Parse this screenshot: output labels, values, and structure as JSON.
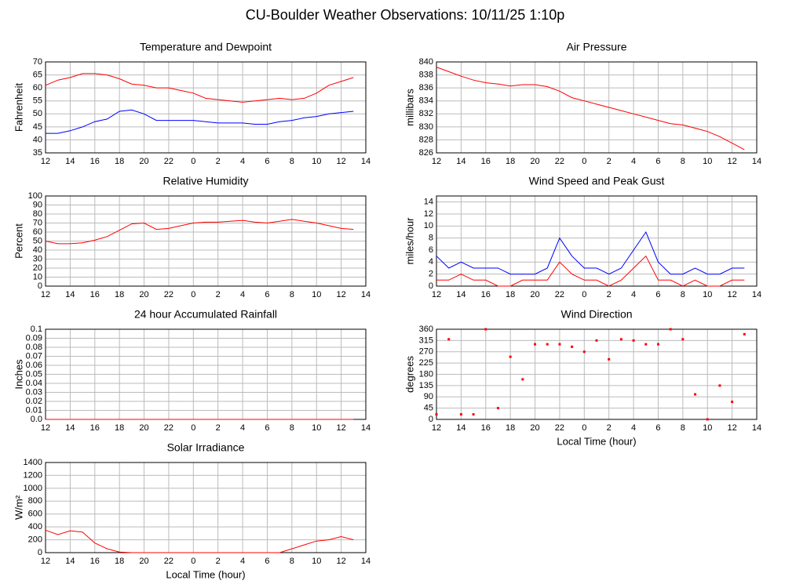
{
  "title": "CU-Boulder Weather Observations: 10/11/25 1:10p",
  "chart_data": [
    {
      "type": "line",
      "title": "Temperature and Dewpoint",
      "ylabel": "Fahrenheit",
      "x": [
        12,
        13,
        14,
        15,
        16,
        17,
        18,
        19,
        20,
        21,
        22,
        23,
        24,
        25,
        26,
        27,
        28,
        29,
        30,
        31,
        32,
        33,
        34,
        35,
        36,
        37
      ],
      "series": [
        {
          "color": "#ff0000",
          "values": [
            61,
            63,
            64,
            65.5,
            65.5,
            65,
            63.5,
            61.5,
            61,
            60,
            60,
            59,
            58,
            56,
            55.5,
            55,
            54.5,
            55,
            55.5,
            56,
            55.5,
            56,
            58,
            61,
            62.5,
            64
          ]
        },
        {
          "color": "#0000ff",
          "values": [
            42.5,
            42.5,
            43.5,
            45,
            47,
            48,
            51,
            51.5,
            50,
            47.5,
            47.5,
            47.5,
            47.5,
            47,
            46.5,
            46.5,
            46.5,
            46,
            46,
            47,
            47.5,
            48.5,
            49,
            50,
            50.5,
            51
          ]
        }
      ],
      "xlim": [
        12,
        38
      ],
      "ylim": [
        35,
        70
      ],
      "xticks": [
        12,
        14,
        16,
        18,
        20,
        22,
        {
          "value": 24,
          "label": "0"
        },
        {
          "value": 26,
          "label": "2"
        },
        {
          "value": 28,
          "label": "4"
        },
        {
          "value": 30,
          "label": "6"
        },
        {
          "value": 32,
          "label": "8"
        },
        {
          "value": 34,
          "label": "10"
        },
        {
          "value": 36,
          "label": "12"
        },
        {
          "value": 38,
          "label": "14"
        }
      ],
      "yticks": [
        35,
        40,
        45,
        50,
        55,
        60,
        65,
        70
      ],
      "grid": true
    },
    {
      "type": "line",
      "title": "Air Pressure",
      "ylabel": "millibars",
      "x": [
        12,
        13,
        14,
        15,
        16,
        17,
        18,
        19,
        20,
        21,
        22,
        23,
        24,
        25,
        26,
        27,
        28,
        29,
        30,
        31,
        32,
        33,
        34,
        35,
        36,
        37
      ],
      "series": [
        {
          "color": "#ff0000",
          "values": [
            839.2,
            838.5,
            837.8,
            837.2,
            836.8,
            836.6,
            836.3,
            836.5,
            836.5,
            836.2,
            835.5,
            834.5,
            834,
            833.5,
            833,
            832.5,
            832,
            831.5,
            831,
            830.5,
            830.3,
            829.8,
            829.3,
            828.5,
            827.5,
            826.5
          ]
        }
      ],
      "xlim": [
        12,
        38
      ],
      "ylim": [
        826,
        840
      ],
      "xticks": [
        12,
        14,
        16,
        18,
        20,
        22,
        {
          "value": 24,
          "label": "0"
        },
        {
          "value": 26,
          "label": "2"
        },
        {
          "value": 28,
          "label": "4"
        },
        {
          "value": 30,
          "label": "6"
        },
        {
          "value": 32,
          "label": "8"
        },
        {
          "value": 34,
          "label": "10"
        },
        {
          "value": 36,
          "label": "12"
        },
        {
          "value": 38,
          "label": "14"
        }
      ],
      "yticks": [
        826,
        828,
        830,
        832,
        834,
        836,
        838,
        840
      ],
      "grid": true
    },
    {
      "type": "line",
      "title": "Relative Humidity",
      "ylabel": "Percent",
      "x": [
        12,
        13,
        14,
        15,
        16,
        17,
        18,
        19,
        20,
        21,
        22,
        23,
        24,
        25,
        26,
        27,
        28,
        29,
        30,
        31,
        32,
        33,
        34,
        35,
        36,
        37
      ],
      "series": [
        {
          "color": "#ff0000",
          "values": [
            50,
            47,
            47,
            48,
            51,
            55,
            62,
            69,
            70,
            63,
            64,
            67,
            70,
            71,
            71,
            72,
            73,
            71,
            70,
            72,
            74,
            72,
            70,
            67,
            64,
            63
          ]
        }
      ],
      "xlim": [
        12,
        38
      ],
      "ylim": [
        0,
        100
      ],
      "xticks": [
        12,
        14,
        16,
        18,
        20,
        22,
        {
          "value": 24,
          "label": "0"
        },
        {
          "value": 26,
          "label": "2"
        },
        {
          "value": 28,
          "label": "4"
        },
        {
          "value": 30,
          "label": "6"
        },
        {
          "value": 32,
          "label": "8"
        },
        {
          "value": 34,
          "label": "10"
        },
        {
          "value": 36,
          "label": "12"
        },
        {
          "value": 38,
          "label": "14"
        }
      ],
      "yticks": [
        0,
        10,
        20,
        30,
        40,
        50,
        60,
        70,
        80,
        90,
        100
      ],
      "grid": true
    },
    {
      "type": "line",
      "title": "Wind Speed and Peak Gust",
      "ylabel": "miles/hour",
      "x": [
        12,
        13,
        14,
        15,
        16,
        17,
        18,
        19,
        20,
        21,
        22,
        23,
        24,
        25,
        26,
        27,
        28,
        29,
        30,
        31,
        32,
        33,
        34,
        35,
        36,
        37
      ],
      "series": [
        {
          "color": "#0000ff",
          "values": [
            5,
            3,
            4,
            3,
            3,
            3,
            2,
            2,
            2,
            3,
            8,
            5,
            3,
            3,
            2,
            3,
            6,
            9,
            4,
            2,
            2,
            3,
            2,
            2,
            3,
            3
          ]
        },
        {
          "color": "#ff0000",
          "values": [
            1,
            1,
            2,
            1,
            1,
            0,
            0,
            1,
            1,
            1,
            4,
            2,
            1,
            1,
            0,
            1,
            3,
            5,
            1,
            1,
            0,
            1,
            0,
            0,
            1,
            1
          ]
        }
      ],
      "xlim": [
        12,
        38
      ],
      "ylim": [
        0,
        15
      ],
      "xticks": [
        12,
        14,
        16,
        18,
        20,
        22,
        {
          "value": 24,
          "label": "0"
        },
        {
          "value": 26,
          "label": "2"
        },
        {
          "value": 28,
          "label": "4"
        },
        {
          "value": 30,
          "label": "6"
        },
        {
          "value": 32,
          "label": "8"
        },
        {
          "value": 34,
          "label": "10"
        },
        {
          "value": 36,
          "label": "12"
        },
        {
          "value": 38,
          "label": "14"
        }
      ],
      "yticks": [
        0,
        2,
        4,
        6,
        8,
        10,
        12,
        14
      ],
      "grid": true
    },
    {
      "type": "line",
      "title": "24 hour Accumulated Rainfall",
      "ylabel": "Inches",
      "x": [
        12,
        13,
        14,
        15,
        16,
        17,
        18,
        19,
        20,
        21,
        22,
        23,
        24,
        25,
        26,
        27,
        28,
        29,
        30,
        31,
        32,
        33,
        34,
        35,
        36,
        37
      ],
      "series": [
        {
          "color": "#ff0000",
          "values": [
            0,
            0,
            0,
            0,
            0,
            0,
            0,
            0,
            0,
            0,
            0,
            0,
            0,
            0,
            0,
            0,
            0,
            0,
            0,
            0,
            0,
            0,
            0,
            0,
            0,
            0
          ]
        }
      ],
      "xlim": [
        12,
        38
      ],
      "ylim": [
        0,
        0.1
      ],
      "xticks": [
        12,
        14,
        16,
        18,
        20,
        22,
        {
          "value": 24,
          "label": "0"
        },
        {
          "value": 26,
          "label": "2"
        },
        {
          "value": 28,
          "label": "4"
        },
        {
          "value": 30,
          "label": "6"
        },
        {
          "value": 32,
          "label": "8"
        },
        {
          "value": 34,
          "label": "10"
        },
        {
          "value": 36,
          "label": "12"
        },
        {
          "value": 38,
          "label": "14"
        }
      ],
      "yticks": [
        {
          "value": 0,
          "label": "0.0"
        },
        0.01,
        0.02,
        0.03,
        0.04,
        0.05,
        0.06,
        0.07,
        0.08,
        0.09,
        0.1
      ],
      "grid": true
    },
    {
      "type": "scatter",
      "title": "Wind Direction",
      "ylabel": "degrees",
      "xlabel": "Local Time (hour)",
      "x": [
        12,
        13,
        14,
        15,
        16,
        17,
        18,
        19,
        20,
        21,
        22,
        23,
        24,
        25,
        26,
        27,
        28,
        29,
        30,
        31,
        32,
        33,
        34,
        35,
        36,
        37
      ],
      "series": [
        {
          "color": "#ff0000",
          "values": [
            20,
            320,
            20,
            20,
            360,
            45,
            250,
            160,
            300,
            300,
            300,
            290,
            270,
            315,
            240,
            320,
            315,
            300,
            300,
            360,
            320,
            100,
            0,
            135,
            70,
            340
          ]
        }
      ],
      "xlim": [
        12,
        38
      ],
      "ylim": [
        0,
        360
      ],
      "xticks": [
        12,
        14,
        16,
        18,
        20,
        22,
        {
          "value": 24,
          "label": "0"
        },
        {
          "value": 26,
          "label": "2"
        },
        {
          "value": 28,
          "label": "4"
        },
        {
          "value": 30,
          "label": "6"
        },
        {
          "value": 32,
          "label": "8"
        },
        {
          "value": 34,
          "label": "10"
        },
        {
          "value": 36,
          "label": "12"
        },
        {
          "value": 38,
          "label": "14"
        }
      ],
      "yticks": [
        0,
        45,
        90,
        135,
        180,
        225,
        270,
        315,
        360
      ],
      "grid": true
    },
    {
      "type": "line",
      "title": "Solar Irradiance",
      "ylabel": "W/m²",
      "xlabel": "Local Time (hour)",
      "x": [
        12,
        13,
        14,
        15,
        16,
        17,
        18,
        19,
        20,
        21,
        22,
        23,
        24,
        25,
        26,
        27,
        28,
        29,
        30,
        31,
        32,
        33,
        34,
        35,
        36,
        37
      ],
      "series": [
        {
          "color": "#ff0000",
          "values": [
            350,
            280,
            340,
            320,
            150,
            60,
            10,
            0,
            0,
            0,
            0,
            0,
            0,
            0,
            0,
            0,
            0,
            0,
            0,
            0,
            60,
            120,
            180,
            200,
            250,
            200
          ]
        }
      ],
      "xlim": [
        12,
        38
      ],
      "ylim": [
        0,
        1400
      ],
      "xticks": [
        12,
        14,
        16,
        18,
        20,
        22,
        {
          "value": 24,
          "label": "0"
        },
        {
          "value": 26,
          "label": "2"
        },
        {
          "value": 28,
          "label": "4"
        },
        {
          "value": 30,
          "label": "6"
        },
        {
          "value": 32,
          "label": "8"
        },
        {
          "value": 34,
          "label": "10"
        },
        {
          "value": 36,
          "label": "12"
        },
        {
          "value": 38,
          "label": "14"
        }
      ],
      "yticks": [
        0,
        200,
        400,
        600,
        800,
        1000,
        1200,
        1400
      ],
      "grid": true
    }
  ]
}
